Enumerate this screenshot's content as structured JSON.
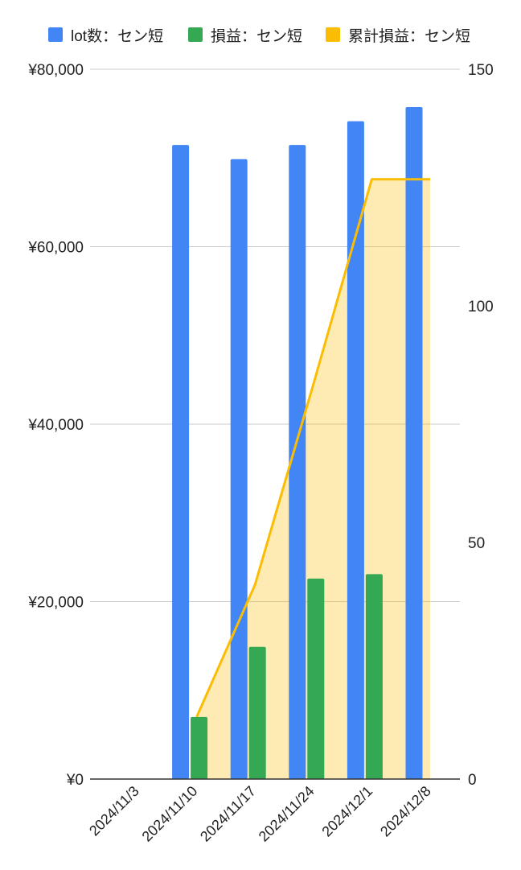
{
  "chart_data": {
    "type": "combo",
    "title": "",
    "xlabel": "",
    "ylabel": "",
    "categories": [
      "2024/11/3",
      "2024/11/10",
      "2024/11/17",
      "2024/11/24",
      "2024/12/1",
      "2024/12/8"
    ],
    "series": [
      {
        "name": "lot数：セン短",
        "type": "bar",
        "axis": "right",
        "color": "#4285F4",
        "values": [
          0,
          134,
          131,
          134,
          139,
          142
        ]
      },
      {
        "name": "損益：セン短",
        "type": "bar",
        "axis": "left",
        "color": "#34A853",
        "values": [
          0,
          7000,
          14900,
          22600,
          23100,
          null
        ]
      },
      {
        "name": "累計損益：セン短",
        "type": "area",
        "axis": "left",
        "color": "#FBBC04",
        "values": [
          null,
          7000,
          21900,
          44500,
          67600,
          67600
        ]
      }
    ],
    "y_left": {
      "ticks": [
        "¥0",
        "¥20,000",
        "¥40,000",
        "¥60,000",
        "¥80,000"
      ],
      "min": 0,
      "max": 80000
    },
    "y_right": {
      "ticks": [
        "0",
        "50",
        "100",
        "150"
      ],
      "min": 0,
      "max": 150
    },
    "grid": true,
    "legend_position": "top"
  }
}
